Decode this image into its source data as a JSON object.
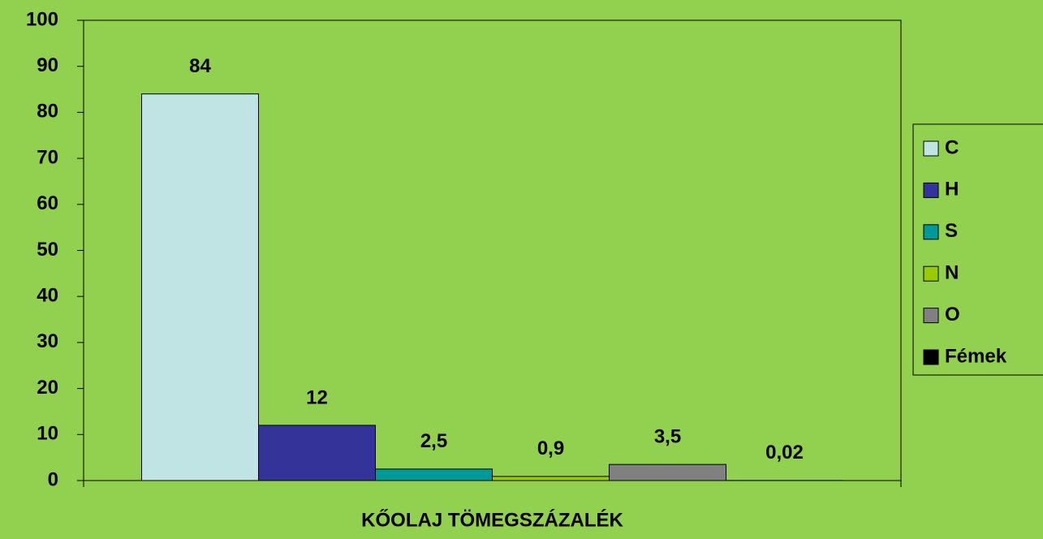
{
  "chart_data": {
    "type": "bar",
    "categories": [
      "KŐOLAJ TÖMEGSZÁZALÉK"
    ],
    "series": [
      {
        "name": "C",
        "color": "#c0e4e4",
        "values": [
          84
        ]
      },
      {
        "name": "H",
        "color": "#333399",
        "values": [
          12
        ]
      },
      {
        "name": "S",
        "color": "#009999",
        "values": [
          2.5
        ],
        "value_labels": [
          "2,5"
        ]
      },
      {
        "name": "N",
        "color": "#99cc00",
        "values": [
          0.9
        ],
        "value_labels": [
          "0,9"
        ]
      },
      {
        "name": "O",
        "color": "#808080",
        "values": [
          3.5
        ],
        "value_labels": [
          "3,5"
        ]
      },
      {
        "name": "Fémek",
        "color": "#000000",
        "values": [
          0.02
        ],
        "value_labels": [
          "0,02"
        ]
      }
    ],
    "ylim": [
      0,
      100
    ],
    "yticks": [
      0,
      10,
      20,
      30,
      40,
      50,
      60,
      70,
      80,
      90,
      100
    ],
    "legend": "right"
  }
}
